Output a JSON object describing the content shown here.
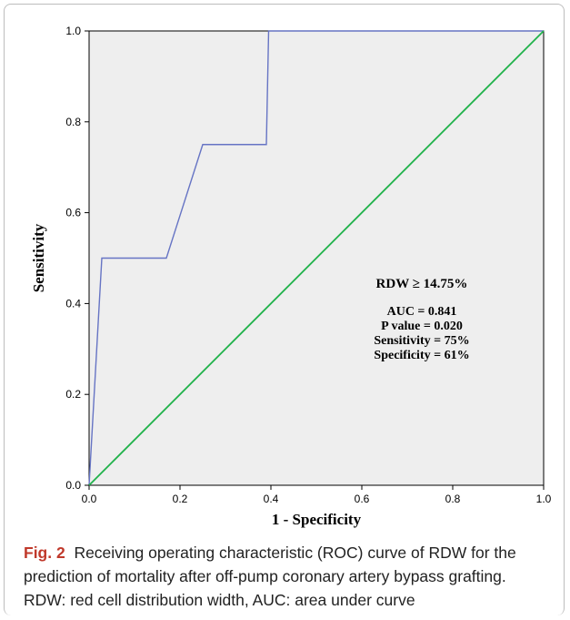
{
  "colors": {
    "roc_curve": "#6674c4",
    "reference_line": "#21b24b",
    "plot_background": "#eeeeee",
    "caption_label": "#c0392b"
  },
  "chart_data": {
    "type": "line",
    "xlabel": "1 - Specificity",
    "ylabel": "Sensitivity",
    "xlim": [
      0,
      1
    ],
    "ylim": [
      0,
      1
    ],
    "grid": false,
    "x_ticks": [
      "0.0",
      "0.2",
      "0.4",
      "0.6",
      "0.8",
      "1.0"
    ],
    "y_ticks": [
      "0.0",
      "0.2",
      "0.4",
      "0.6",
      "0.8",
      "1.0"
    ],
    "series": [
      {
        "x": [
          0.0,
          0.028,
          0.028,
          0.17,
          0.25,
          0.39,
          0.395,
          1.0
        ],
        "y": [
          0.0,
          0.5,
          0.5,
          0.5,
          0.75,
          0.75,
          1.0,
          1.0
        ]
      },
      {
        "x": [
          0.0,
          1.0
        ],
        "y": [
          0.0,
          1.0
        ]
      }
    ],
    "annotations": {
      "cutoff": "RDW ≥ 14.75%",
      "auc": "AUC = 0.841",
      "p_value": "P value = 0.020",
      "sensitivity": "Sensitivity = 75%",
      "specificity": "Specificity = 61%"
    }
  },
  "caption": {
    "label": "Fig. 2",
    "text": "Receiving operating characteristic (ROC) curve of RDW for the prediction of mortality after off-pump coronary artery bypass grafting. RDW: red cell distribution width, AUC: area under curve"
  }
}
